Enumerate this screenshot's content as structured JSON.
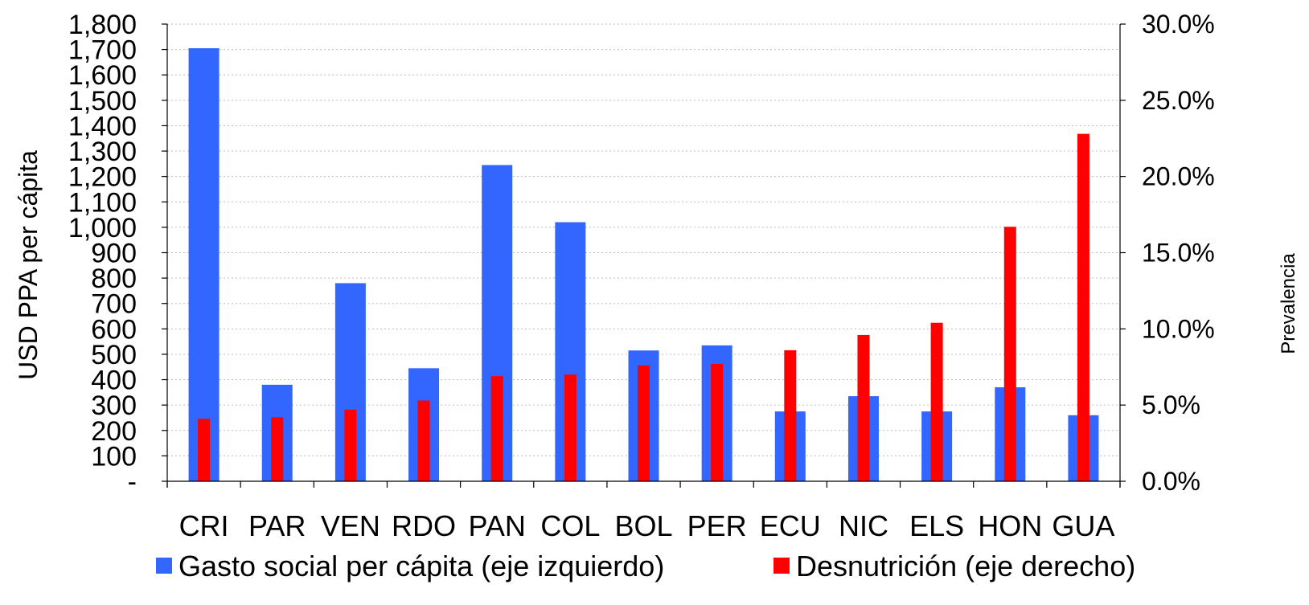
{
  "chart_data": {
    "type": "bar",
    "categories": [
      "CRI",
      "PAR",
      "VEN",
      "RDO",
      "PAN",
      "COL",
      "BOL",
      "PER",
      "ECU",
      "NIC",
      "ELS",
      "HON",
      "GUA"
    ],
    "series": [
      {
        "name": "Gasto social per cápita (eje izquierdo)",
        "axis": "left",
        "color": "#3366ff",
        "values": [
          1705,
          380,
          780,
          445,
          1245,
          1020,
          515,
          535,
          275,
          335,
          275,
          370,
          260
        ]
      },
      {
        "name": "Desnutrición (eje derecho)",
        "axis": "right",
        "color": "#ff0000",
        "values": [
          0.041,
          0.042,
          0.047,
          0.053,
          0.069,
          0.07,
          0.076,
          0.077,
          0.086,
          0.096,
          0.104,
          0.167,
          0.228
        ]
      }
    ],
    "ylabel": "USD PPA per cápita",
    "ylabel_right": "Prevalencia",
    "ylim": [
      0,
      1800
    ],
    "ylim_right": [
      0,
      0.3
    ],
    "yticks": [
      "-",
      "100",
      "200",
      "300",
      "400",
      "500",
      "600",
      "700",
      "800",
      "900",
      "1,000",
      "1,100",
      "1,200",
      "1,300",
      "1,400",
      "1,500",
      "1,600",
      "1,700",
      "1,800"
    ],
    "yticks_right": [
      "0.0%",
      "5.0%",
      "10.0%",
      "15.0%",
      "20.0%",
      "25.0%",
      "30.0%"
    ],
    "grid": true,
    "legend_position": "bottom"
  }
}
